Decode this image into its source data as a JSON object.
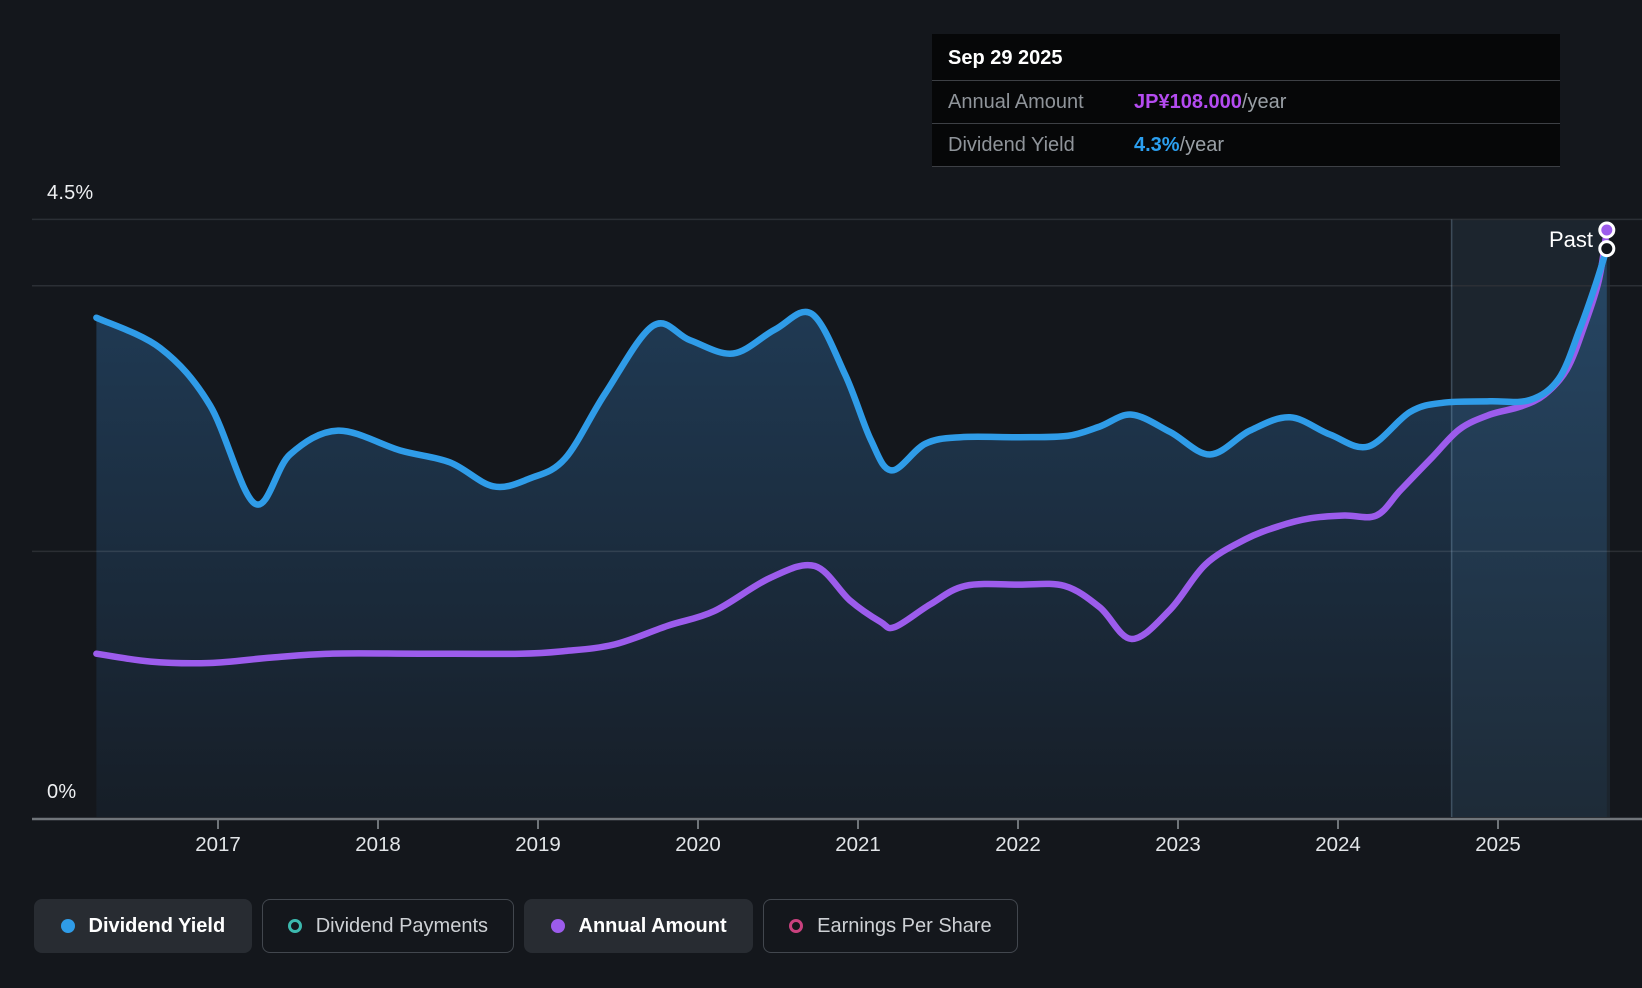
{
  "page": {
    "background": "#14171c"
  },
  "tooltip": {
    "title": "Sep 29 2025",
    "rows": [
      {
        "label": "Annual Amount",
        "value": "JP¥108.000",
        "suffix": "/year",
        "value_color": "#b44bf0"
      },
      {
        "label": "Dividend Yield",
        "value": "4.3%",
        "suffix": "/year",
        "value_color": "#2b9ff0"
      }
    ]
  },
  "past_label": "Past",
  "y_axis_labels": {
    "top": "4.5%",
    "bottom": "0%"
  },
  "legend": [
    {
      "label": "Dividend Yield",
      "marker": "dot",
      "color": "#2f9ce8",
      "active": true
    },
    {
      "label": "Dividend Payments",
      "marker": "ring",
      "color": "#3cb9ae",
      "active": false
    },
    {
      "label": "Annual Amount",
      "marker": "dot",
      "color": "#9c5cec",
      "active": true
    },
    {
      "label": "Earnings Per Share",
      "marker": "ring",
      "color": "#c9417e",
      "active": false
    }
  ],
  "colors": {
    "blue": "#2f9ce8",
    "purple": "#9c5cec",
    "area_top": "rgba(58,138,212,0.33)",
    "area_bottom": "rgba(58,138,212,0.06)",
    "band": "rgba(110,162,205,0.10)",
    "divider": "rgba(162,196,226,0.28)",
    "grid_dark": "#2b2f35",
    "grid_light": "rgba(255,255,255,0.10)",
    "axis": "#70757a",
    "dot_dark_fill": "#10141b",
    "dot_stroke": "#ffffff"
  },
  "chart_data": {
    "type": "area",
    "title": "Dividend history",
    "x_domain": [
      2016.23,
      2025.9
    ],
    "y_domain": [
      0,
      4.5
    ],
    "x_ticks": [
      2017,
      2018,
      2019,
      2020,
      2021,
      2022,
      2023,
      2024,
      2025
    ],
    "y_axis": {
      "label_top": "4.5%",
      "label_bottom": "0%",
      "gridlines": [
        {
          "pct": 4.5,
          "shade": "dark"
        },
        {
          "pct": 4.0,
          "shade": "dark"
        },
        {
          "pct": 2.0,
          "shade": "light"
        }
      ]
    },
    "past_divider_x": 2024.71,
    "plot_start_x": 2016.23,
    "plot_end_x": 2025.7,
    "last_point_date": "Sep 29 2025",
    "series": [
      {
        "name": "Dividend Yield",
        "unit": "%",
        "current": "4.3%/year",
        "style": "area-line",
        "end_dot": "hollow",
        "points": [
          [
            2016.24,
            3.76
          ],
          [
            2016.64,
            3.53
          ],
          [
            2016.95,
            3.1
          ],
          [
            2017.23,
            2.36
          ],
          [
            2017.45,
            2.73
          ],
          [
            2017.75,
            2.91
          ],
          [
            2018.14,
            2.76
          ],
          [
            2018.45,
            2.67
          ],
          [
            2018.72,
            2.49
          ],
          [
            2018.95,
            2.55
          ],
          [
            2019.17,
            2.7
          ],
          [
            2019.42,
            3.19
          ],
          [
            2019.72,
            3.7
          ],
          [
            2019.95,
            3.59
          ],
          [
            2020.22,
            3.49
          ],
          [
            2020.48,
            3.67
          ],
          [
            2020.71,
            3.79
          ],
          [
            2020.92,
            3.33
          ],
          [
            2021.08,
            2.84
          ],
          [
            2021.21,
            2.61
          ],
          [
            2021.42,
            2.81
          ],
          [
            2021.64,
            2.86
          ],
          [
            2022.01,
            2.86
          ],
          [
            2022.31,
            2.87
          ],
          [
            2022.51,
            2.94
          ],
          [
            2022.71,
            3.03
          ],
          [
            2022.95,
            2.9
          ],
          [
            2023.2,
            2.73
          ],
          [
            2023.45,
            2.91
          ],
          [
            2023.7,
            3.01
          ],
          [
            2023.95,
            2.88
          ],
          [
            2024.19,
            2.79
          ],
          [
            2024.45,
            3.05
          ],
          [
            2024.66,
            3.12
          ],
          [
            2024.95,
            3.13
          ],
          [
            2025.2,
            3.14
          ],
          [
            2025.38,
            3.3
          ],
          [
            2025.51,
            3.67
          ],
          [
            2025.61,
            4.01
          ],
          [
            2025.68,
            4.28
          ]
        ]
      },
      {
        "name": "Annual Amount",
        "unit": "JP¥ per year (plotted on hidden scale)",
        "current": "JP¥108.000/year",
        "style": "line",
        "end_dot": "filled",
        "points": [
          [
            2016.24,
            1.23
          ],
          [
            2016.58,
            1.17
          ],
          [
            2016.95,
            1.16
          ],
          [
            2017.33,
            1.2
          ],
          [
            2017.7,
            1.23
          ],
          [
            2018.26,
            1.23
          ],
          [
            2018.89,
            1.23
          ],
          [
            2019.17,
            1.25
          ],
          [
            2019.48,
            1.3
          ],
          [
            2019.81,
            1.44
          ],
          [
            2020.1,
            1.55
          ],
          [
            2020.45,
            1.8
          ],
          [
            2020.73,
            1.89
          ],
          [
            2020.95,
            1.63
          ],
          [
            2021.14,
            1.47
          ],
          [
            2021.23,
            1.43
          ],
          [
            2021.45,
            1.6
          ],
          [
            2021.67,
            1.74
          ],
          [
            2022.01,
            1.75
          ],
          [
            2022.29,
            1.74
          ],
          [
            2022.51,
            1.58
          ],
          [
            2022.71,
            1.34
          ],
          [
            2022.95,
            1.56
          ],
          [
            2023.17,
            1.9
          ],
          [
            2023.42,
            2.09
          ],
          [
            2023.63,
            2.19
          ],
          [
            2023.83,
            2.25
          ],
          [
            2024.04,
            2.27
          ],
          [
            2024.24,
            2.27
          ],
          [
            2024.39,
            2.46
          ],
          [
            2024.59,
            2.71
          ],
          [
            2024.76,
            2.92
          ],
          [
            2024.95,
            3.03
          ],
          [
            2025.14,
            3.09
          ],
          [
            2025.29,
            3.18
          ],
          [
            2025.43,
            3.37
          ],
          [
            2025.54,
            3.7
          ],
          [
            2025.63,
            4.04
          ],
          [
            2025.68,
            4.42
          ]
        ]
      }
    ],
    "legend_position": "bottom-left",
    "grid": "partial-horizontal"
  }
}
